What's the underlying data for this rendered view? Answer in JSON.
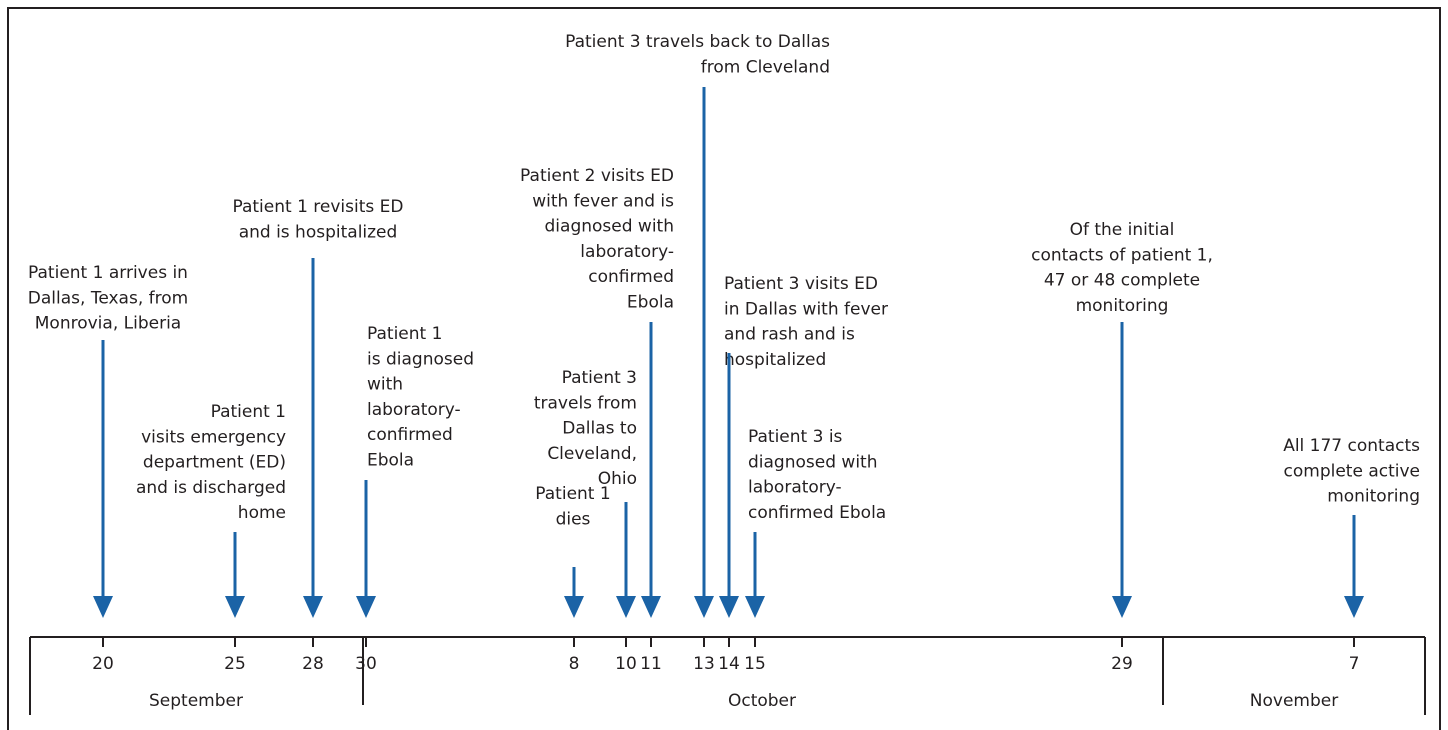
{
  "events": [
    {
      "lines": [
        "Patient 1 arrives in",
        "Dallas, Texas, from",
        "Monrovia, Liberia"
      ]
    },
    {
      "lines": [
        "Patient 1",
        "visits emergency",
        "department (ED)",
        "and is discharged",
        "home"
      ]
    },
    {
      "lines": [
        "Patient 1 revisits ED",
        "and is hospitalized"
      ]
    },
    {
      "lines": [
        "Patient 1",
        "is diagnosed",
        "with",
        "laboratory-",
        "confirmed",
        "Ebola"
      ]
    },
    {
      "lines": [
        "Patient 1",
        "dies"
      ]
    },
    {
      "lines": [
        "Patient 3",
        "travels from",
        "Dallas to",
        "Cleveland,",
        "Ohio"
      ]
    },
    {
      "lines": [
        "Patient 2 visits ED",
        "with fever and is",
        "diagnosed with",
        "laboratory-",
        "confirmed",
        "Ebola"
      ]
    },
    {
      "lines": [
        "Patient 3 travels back to Dallas",
        "from Cleveland"
      ]
    },
    {
      "lines": [
        "Patient 3 visits ED",
        "in Dallas with fever",
        "and rash and is",
        "hospitalized"
      ]
    },
    {
      "lines": [
        "Patient 3 is",
        "diagnosed with",
        "laboratory-",
        "confirmed Ebola"
      ]
    },
    {
      "lines": [
        "Of the initial",
        "contacts of patient 1,",
        "47 or 48 complete",
        "monitoring"
      ]
    },
    {
      "lines": [
        "All 177 contacts",
        "complete active",
        "monitoring"
      ]
    }
  ],
  "dates": [
    "20",
    "25",
    "28",
    "30",
    "8",
    "10",
    "11",
    "13",
    "14",
    "15",
    "29",
    "7"
  ],
  "months": [
    "September",
    "October",
    "November"
  ]
}
